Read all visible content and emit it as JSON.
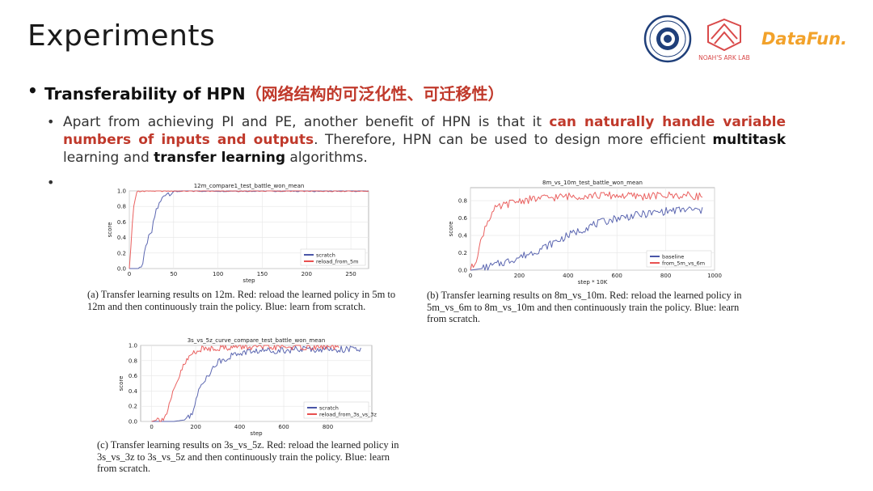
{
  "slide": {
    "title": "Experiments",
    "bullet": {
      "label": "Transferability of HPN",
      "label_cn": "（网络结构的可泛化性、可迁移性）"
    },
    "paragraph": {
      "part1": "Apart from achieving PI and PE, another benefit of HPN is that it ",
      "highlight": "can naturally handle variable numbers of inputs and outputs",
      "part2": ". Therefore, HPN can be used to design more efficient ",
      "bold1": "multitask",
      "part3": " learning and ",
      "bold2": "transfer learning",
      "part4": " algorithms."
    },
    "logos": {
      "lab": "NOAH'S ARK LAB",
      "datafun": "DataFun."
    }
  },
  "colors": {
    "red": "#c0392b",
    "series_red": "#e8504f",
    "series_blue": "#4a56a8",
    "grid": "#e6e6e6"
  },
  "chart_data": [
    {
      "type": "line",
      "title": "12m_compare1_test_battle_won_mean",
      "xlabel": "step",
      "ylabel": "score",
      "xlim": [
        0,
        270
      ],
      "ylim": [
        0,
        1.0
      ],
      "xticks": [
        0,
        50,
        100,
        150,
        200,
        250
      ],
      "yticks": [
        0.0,
        0.2,
        0.4,
        0.6,
        0.8,
        1.0
      ],
      "legend": "bottom-right",
      "grid": true,
      "series": [
        {
          "name": "scratch",
          "color": "#4a56a8",
          "x": [
            0,
            10,
            15,
            20,
            25,
            30,
            35,
            40,
            50,
            60,
            80,
            100,
            150,
            200,
            250,
            270
          ],
          "y": [
            0.0,
            0.0,
            0.05,
            0.35,
            0.45,
            0.75,
            0.85,
            0.97,
            0.99,
            1.0,
            1.0,
            1.0,
            1.0,
            1.0,
            1.0,
            1.0
          ]
        },
        {
          "name": "reload_from_5m",
          "color": "#e8504f",
          "x": [
            0,
            2,
            4,
            6,
            8,
            10,
            15,
            20,
            30,
            50,
            100,
            150,
            200,
            250,
            270
          ],
          "y": [
            0.0,
            0.3,
            0.7,
            0.9,
            0.95,
            0.98,
            1.0,
            1.0,
            1.0,
            1.0,
            1.0,
            1.0,
            1.0,
            1.0,
            1.0
          ]
        }
      ],
      "caption": "(a) Transfer learning results on 12m. Red: reload the learned policy in 5m to 12m and then continuously train the policy. Blue: learn from scratch."
    },
    {
      "type": "line",
      "title": "8m_vs_10m_test_battle_won_mean",
      "xlabel": "step * 10K",
      "ylabel": "score",
      "xlim": [
        0,
        1000
      ],
      "ylim": [
        0,
        0.95
      ],
      "xticks": [
        0,
        200,
        400,
        600,
        800,
        1000
      ],
      "yticks": [
        0.0,
        0.2,
        0.4,
        0.6,
        0.8
      ],
      "legend": "bottom-right",
      "grid": true,
      "series": [
        {
          "name": "baseline",
          "color": "#4a56a8",
          "x": [
            0,
            50,
            100,
            150,
            200,
            250,
            300,
            350,
            400,
            450,
            500,
            550,
            600,
            650,
            700,
            750,
            800,
            850,
            900,
            950
          ],
          "y": [
            0.0,
            0.02,
            0.06,
            0.1,
            0.15,
            0.2,
            0.26,
            0.33,
            0.4,
            0.46,
            0.52,
            0.56,
            0.6,
            0.62,
            0.64,
            0.66,
            0.68,
            0.69,
            0.7,
            0.68
          ]
        },
        {
          "name": "from_5m_vs_6m",
          "color": "#e8504f",
          "x": [
            0,
            20,
            40,
            60,
            80,
            100,
            150,
            200,
            300,
            400,
            500,
            600,
            700,
            800,
            900,
            950
          ],
          "y": [
            0.0,
            0.1,
            0.3,
            0.5,
            0.62,
            0.7,
            0.76,
            0.8,
            0.83,
            0.85,
            0.86,
            0.86,
            0.85,
            0.86,
            0.86,
            0.85
          ]
        }
      ],
      "caption": "(b) Transfer learning results on 8m_vs_10m. Red: reload the learned policy in 5m_vs_6m to 8m_vs_10m and then continuously train the policy. Blue: learn from scratch."
    },
    {
      "type": "line",
      "title": "3s_vs_5z_curve_compare_test_battle_won_mean",
      "xlabel": "step",
      "ylabel": "score",
      "xlim": [
        -50,
        1000
      ],
      "ylim": [
        0,
        1.0
      ],
      "xticks": [
        0,
        200,
        400,
        600,
        800
      ],
      "yticks": [
        0.0,
        0.2,
        0.4,
        0.6,
        0.8,
        1.0
      ],
      "legend": "bottom-right",
      "grid": true,
      "series": [
        {
          "name": "scratch",
          "color": "#4a56a8",
          "x": [
            0,
            100,
            150,
            180,
            200,
            220,
            250,
            280,
            300,
            350,
            400,
            450,
            500,
            600,
            700,
            800,
            900,
            950
          ],
          "y": [
            0.0,
            0.0,
            0.02,
            0.1,
            0.25,
            0.45,
            0.6,
            0.7,
            0.78,
            0.85,
            0.9,
            0.92,
            0.93,
            0.94,
            0.95,
            0.95,
            0.95,
            0.94
          ]
        },
        {
          "name": "reload_from_3s_vs_3z",
          "color": "#e8504f",
          "x": [
            0,
            60,
            80,
            100,
            120,
            140,
            160,
            180,
            200,
            250,
            300,
            400,
            500,
            600,
            700,
            800,
            850
          ],
          "y": [
            0.0,
            0.05,
            0.2,
            0.4,
            0.55,
            0.7,
            0.8,
            0.88,
            0.93,
            0.96,
            0.97,
            0.98,
            0.98,
            0.98,
            0.98,
            0.98,
            0.98
          ]
        }
      ],
      "caption": "(c) Transfer learning results on 3s_vs_5z. Red: reload the learned policy in 3s_vs_3z to 3s_vs_5z and then continuously train the policy. Blue: learn from scratch."
    }
  ]
}
